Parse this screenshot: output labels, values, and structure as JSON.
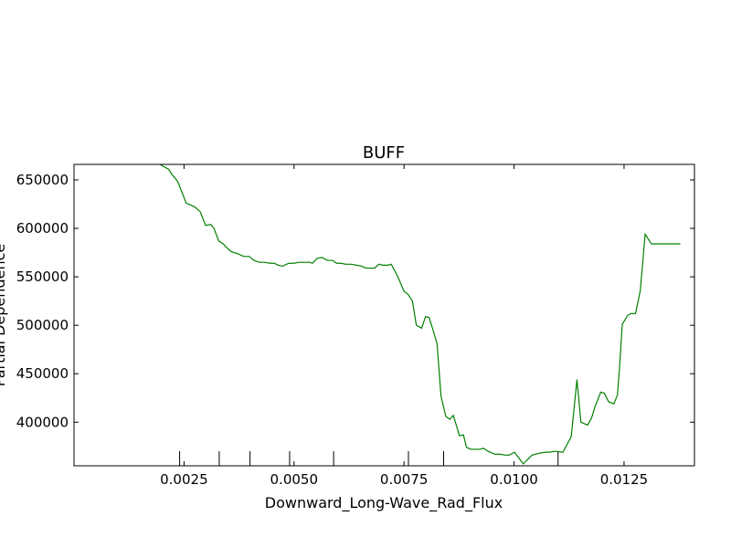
{
  "chart_data": {
    "type": "line",
    "title": "BUFF",
    "xlabel": "Downward_Long-Wave_Rad_Flux",
    "ylabel": "Partial Dependence",
    "xlim": [
      0.0,
      0.0141
    ],
    "ylim": [
      355000,
      666000
    ],
    "xticks": [
      0.0025,
      0.005,
      0.0075,
      0.01,
      0.0125
    ],
    "xtick_labels": [
      "0.0025",
      "0.0050",
      "0.0075",
      "0.0100",
      "0.0125"
    ],
    "yticks": [
      400000,
      450000,
      500000,
      550000,
      600000,
      650000
    ],
    "ytick_labels": [
      "400000",
      "450000",
      "500000",
      "550000",
      "600000",
      "650000"
    ],
    "rug": [
      0.0024,
      0.0033,
      0.004,
      0.0049,
      0.0059,
      0.0076,
      0.0084,
      0.011
    ],
    "grid": false,
    "color": "#008000",
    "series": [
      {
        "x": [
          0.0016,
          0.00195,
          0.00215,
          0.00222,
          0.00231,
          0.00236,
          0.00255,
          0.00275,
          0.00287,
          0.00299,
          0.00311,
          0.00318,
          0.00329,
          0.00339,
          0.00345,
          0.00357,
          0.00371,
          0.00386,
          0.00398,
          0.00409,
          0.00421,
          0.00433,
          0.00446,
          0.00455,
          0.00464,
          0.00474,
          0.00488,
          0.00499,
          0.00511,
          0.00523,
          0.00535,
          0.00542,
          0.00552,
          0.00564,
          0.00575,
          0.00587,
          0.00597,
          0.00606,
          0.00618,
          0.0063,
          0.00642,
          0.00654,
          0.00663,
          0.00672,
          0.00683,
          0.00693,
          0.00702,
          0.00713,
          0.00721,
          0.00735,
          0.0075,
          0.00759,
          0.00769,
          0.00778,
          0.0079,
          0.00799,
          0.00807,
          0.00816,
          0.00825,
          0.00834,
          0.00845,
          0.00854,
          0.00862,
          0.00876,
          0.00885,
          0.00892,
          0.00902,
          0.0091,
          0.00921,
          0.00931,
          0.00941,
          0.00956,
          0.00968,
          0.00979,
          0.00989,
          0.01001,
          0.01021,
          0.01041,
          0.01058,
          0.01071,
          0.01081,
          0.01093,
          0.01111,
          0.0113,
          0.01143,
          0.01152,
          0.01167,
          0.01176,
          0.01184,
          0.01197,
          0.01205,
          0.01215,
          0.01227,
          0.01235,
          0.0124,
          0.01246,
          0.01258,
          0.01265,
          0.01276,
          0.01287,
          0.01298,
          0.01312,
          0.01326,
          0.01343,
          0.01356,
          0.01368,
          0.01378
        ],
        "values": [
          700000,
          666000,
          661000,
          656000,
          651000,
          648000,
          626000,
          622000,
          617000,
          603000,
          604000,
          600000,
          587000,
          584000,
          581000,
          576000,
          574000,
          571000,
          571000,
          567000,
          565000,
          565000,
          564000,
          564000,
          562000,
          561000,
          564000,
          564000,
          565000,
          565000,
          565000,
          564000,
          569000,
          570000,
          567000,
          567000,
          564000,
          564000,
          563000,
          563000,
          562000,
          561000,
          559000,
          559000,
          559000,
          563000,
          562000,
          562000,
          563000,
          551000,
          535000,
          532000,
          525000,
          500000,
          497000,
          509000,
          508000,
          495000,
          481000,
          427000,
          406000,
          403000,
          407000,
          386000,
          387000,
          374000,
          372000,
          372000,
          372000,
          373000,
          370000,
          367000,
          367000,
          366000,
          366000,
          369000,
          357000,
          366000,
          368000,
          369000,
          369000,
          370000,
          369000,
          385000,
          444000,
          400000,
          397000,
          404000,
          416000,
          431000,
          430000,
          421000,
          419000,
          428000,
          458000,
          501000,
          510000,
          512000,
          512000,
          536000,
          594000,
          584000,
          584000,
          584000,
          584000,
          584000,
          584000
        ]
      }
    ]
  }
}
